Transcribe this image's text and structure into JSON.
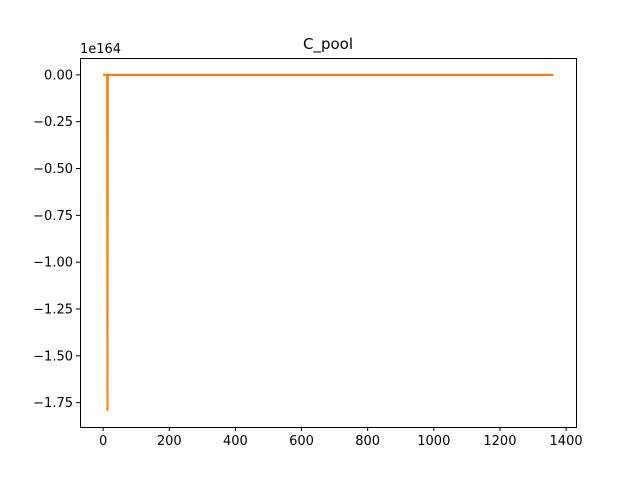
{
  "chart_data": {
    "type": "line",
    "title": "C_pool",
    "xlabel": "",
    "ylabel": "",
    "y_offset_label": "1e164",
    "y_scale_exponent": 164,
    "xlim": [
      -70,
      1430
    ],
    "ylim": [
      -1.88,
      0.09
    ],
    "x_ticks": [
      0,
      200,
      400,
      600,
      800,
      1000,
      1200,
      1400
    ],
    "x_tick_labels": [
      "0",
      "200",
      "400",
      "600",
      "800",
      "1000",
      "1200",
      "1400"
    ],
    "y_ticks": [
      0.0,
      -0.25,
      -0.5,
      -0.75,
      -1.0,
      -1.25,
      -1.5,
      -1.75
    ],
    "y_tick_labels": [
      "0.00",
      "−0.25",
      "−0.50",
      "−0.75",
      "−1.00",
      "−1.25",
      "−1.50",
      "−1.75"
    ],
    "grid": false,
    "series": [
      {
        "color": "#1f77b4",
        "x": [
          0,
          12,
          13,
          1362
        ],
        "y": [
          0,
          0,
          0,
          0
        ]
      },
      {
        "color": "#ff7f0e",
        "x": [
          0,
          12,
          13,
          14,
          1362
        ],
        "y": [
          0,
          0,
          -1.79,
          0,
          0
        ]
      }
    ]
  }
}
